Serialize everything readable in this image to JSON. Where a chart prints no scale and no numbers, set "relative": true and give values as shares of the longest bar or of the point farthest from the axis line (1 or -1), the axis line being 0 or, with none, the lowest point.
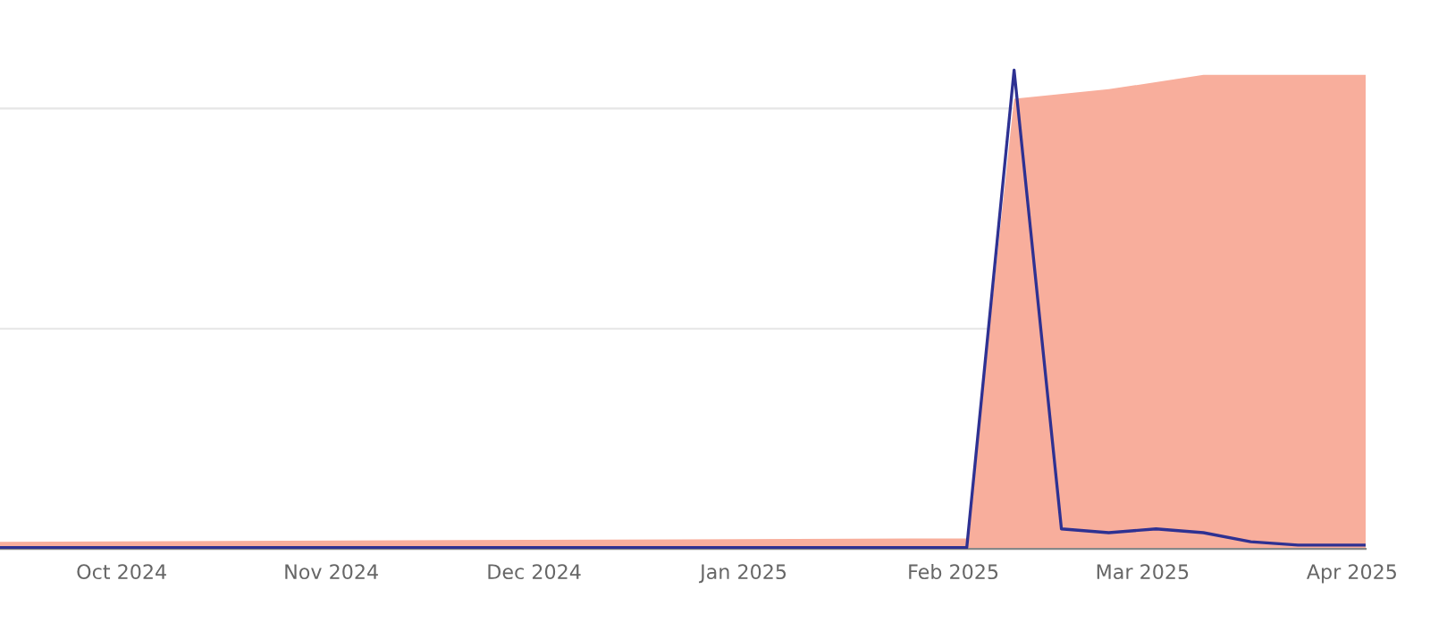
{
  "chart_data": {
    "type": "area",
    "relative": true,
    "legend": false,
    "tick_labels": "x",
    "ref_lines": [
      {
        "axis": "y",
        "value": 0.46,
        "color": "#e6e6e6"
      },
      {
        "axis": "y",
        "value": 0.92,
        "color": "#e6e6e6"
      }
    ],
    "xlim": [
      "2024-09-13",
      "2025-04-03"
    ],
    "xticks": [
      {
        "value": "2024-10-01",
        "label": "Oct 2024"
      },
      {
        "value": "2024-11-01",
        "label": "Nov 2024"
      },
      {
        "value": "2024-12-01",
        "label": "Dec 2024"
      },
      {
        "value": "2025-01-01",
        "label": "Jan 2025"
      },
      {
        "value": "2025-02-01",
        "label": "Feb 2025"
      },
      {
        "value": "2025-03-01",
        "label": "Mar 2025"
      },
      {
        "value": "2025-04-01",
        "label": "Apr 2025"
      }
    ],
    "series": [
      {
        "color": "#f8ae9c",
        "x": [
          "2024-09-13",
          "2025-01-27",
          "2025-02-03",
          "2025-02-10",
          "2025-02-24",
          "2025-03-10",
          "2025-04-03"
        ],
        "values": [
          0.015,
          0.022,
          0.022,
          0.94,
          0.96,
          0.99,
          0.99
        ]
      },
      {
        "type": "line",
        "color": "#2e3192",
        "x": [
          "2024-09-13",
          "2025-01-27",
          "2025-02-03",
          "2025-02-10",
          "2025-02-17",
          "2025-02-24",
          "2025-03-03",
          "2025-03-10",
          "2025-03-17",
          "2025-03-24",
          "2025-03-31",
          "2025-04-03"
        ],
        "values": [
          0.003,
          0.003,
          0.003,
          1,
          0.042,
          0.034,
          0.042,
          0.034,
          0.015,
          0.008,
          0.008,
          0.008
        ]
      }
    ]
  }
}
